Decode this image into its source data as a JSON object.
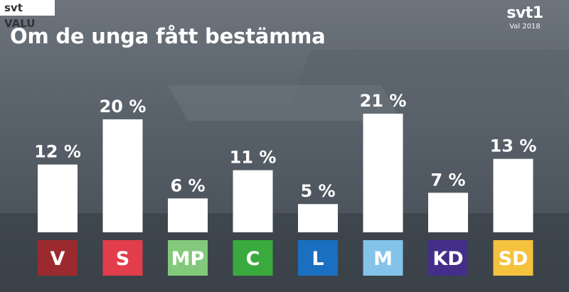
{
  "header": {
    "tag": "svt VALU",
    "title": "Om de unga fått bestämma",
    "logo": "svt1",
    "logo_sub": "Val 2018"
  },
  "chart_data": {
    "type": "bar",
    "title": "Om de unga fått bestämma",
    "categories": [
      "V",
      "S",
      "MP",
      "C",
      "L",
      "M",
      "KD",
      "SD"
    ],
    "values": [
      12,
      20,
      6,
      11,
      5,
      21,
      7,
      13
    ],
    "labels": [
      "12 %",
      "20 %",
      "6 %",
      "11 %",
      "5 %",
      "21 %",
      "7 %",
      "13 %"
    ],
    "unit": "%",
    "ylim": [
      0,
      21
    ],
    "bar_color": "#ffffff",
    "category_colors": [
      "#9b2a2e",
      "#e23d4b",
      "#83c97b",
      "#3aaa3e",
      "#1a6fc0",
      "#84c3e9",
      "#432e89",
      "#f5c23e"
    ],
    "grid": false,
    "legend": "none"
  }
}
